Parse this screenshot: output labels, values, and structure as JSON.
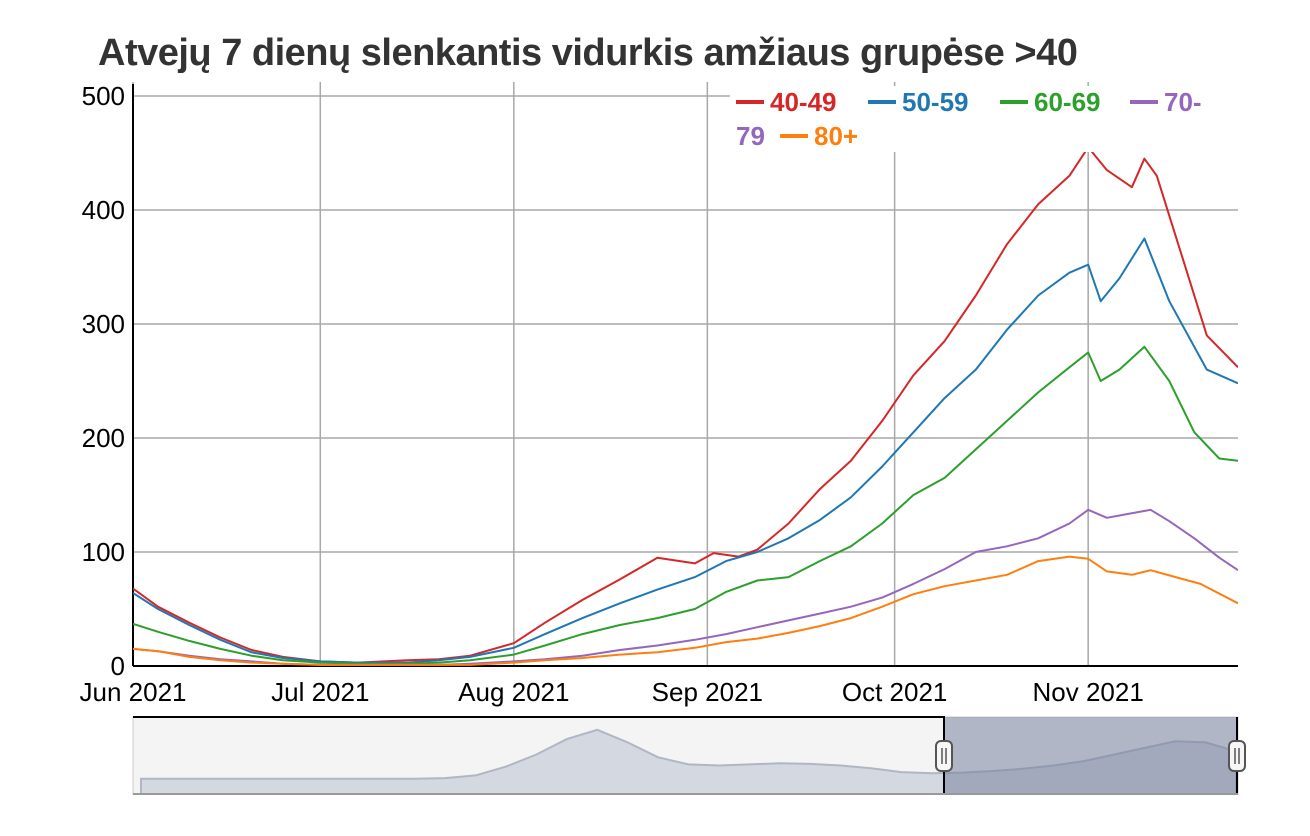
{
  "chart_data": {
    "type": "line",
    "title": "Atvejų 7 dienų slenkantis vidurkis amžiaus grupėse >40",
    "xlabel": "",
    "ylabel": "",
    "x_start": "2021-06-01",
    "x_end": "2021-11-25",
    "x_ticks": [
      "Jun 2021",
      "Jul 2021",
      "Aug 2021",
      "Sep 2021",
      "Oct 2021",
      "Nov 2021"
    ],
    "x_tick_dates": [
      "2021-06-01",
      "2021-07-01",
      "2021-08-01",
      "2021-09-01",
      "2021-10-01",
      "2021-11-01"
    ],
    "y_ticks": [
      "0",
      "100",
      "200",
      "300",
      "400",
      "500"
    ],
    "ylim": [
      0,
      500
    ],
    "grid": true,
    "legend_position": "top-right",
    "series": [
      {
        "name": "40-49",
        "color": "#d62728",
        "points": [
          [
            "2021-06-01",
            68
          ],
          [
            "2021-06-05",
            52
          ],
          [
            "2021-06-10",
            38
          ],
          [
            "2021-06-15",
            25
          ],
          [
            "2021-06-20",
            14
          ],
          [
            "2021-06-25",
            8
          ],
          [
            "2021-07-01",
            4
          ],
          [
            "2021-07-07",
            3
          ],
          [
            "2021-07-15",
            5
          ],
          [
            "2021-07-20",
            6
          ],
          [
            "2021-07-25",
            9
          ],
          [
            "2021-08-01",
            20
          ],
          [
            "2021-08-06",
            38
          ],
          [
            "2021-08-12",
            58
          ],
          [
            "2021-08-18",
            76
          ],
          [
            "2021-08-24",
            95
          ],
          [
            "2021-08-30",
            90
          ],
          [
            "2021-09-02",
            99
          ],
          [
            "2021-09-06",
            96
          ],
          [
            "2021-09-09",
            102
          ],
          [
            "2021-09-14",
            125
          ],
          [
            "2021-09-19",
            155
          ],
          [
            "2021-09-24",
            180
          ],
          [
            "2021-09-29",
            215
          ],
          [
            "2021-10-04",
            255
          ],
          [
            "2021-10-09",
            285
          ],
          [
            "2021-10-14",
            325
          ],
          [
            "2021-10-19",
            370
          ],
          [
            "2021-10-24",
            405
          ],
          [
            "2021-10-29",
            430
          ],
          [
            "2021-11-01",
            455
          ],
          [
            "2021-11-04",
            435
          ],
          [
            "2021-11-08",
            420
          ],
          [
            "2021-11-10",
            445
          ],
          [
            "2021-11-12",
            430
          ],
          [
            "2021-11-16",
            360
          ],
          [
            "2021-11-20",
            290
          ],
          [
            "2021-11-25",
            262
          ]
        ]
      },
      {
        "name": "50-59",
        "color": "#1f77b4",
        "points": [
          [
            "2021-06-01",
            64
          ],
          [
            "2021-06-05",
            50
          ],
          [
            "2021-06-10",
            36
          ],
          [
            "2021-06-15",
            23
          ],
          [
            "2021-06-20",
            12
          ],
          [
            "2021-06-25",
            7
          ],
          [
            "2021-07-01",
            4
          ],
          [
            "2021-07-07",
            3
          ],
          [
            "2021-07-15",
            3
          ],
          [
            "2021-07-20",
            5
          ],
          [
            "2021-07-25",
            8
          ],
          [
            "2021-08-01",
            16
          ],
          [
            "2021-08-06",
            28
          ],
          [
            "2021-08-12",
            42
          ],
          [
            "2021-08-18",
            55
          ],
          [
            "2021-08-24",
            67
          ],
          [
            "2021-08-30",
            78
          ],
          [
            "2021-09-04",
            92
          ],
          [
            "2021-09-09",
            100
          ],
          [
            "2021-09-14",
            112
          ],
          [
            "2021-09-19",
            128
          ],
          [
            "2021-09-24",
            148
          ],
          [
            "2021-09-29",
            175
          ],
          [
            "2021-10-04",
            205
          ],
          [
            "2021-10-09",
            235
          ],
          [
            "2021-10-14",
            260
          ],
          [
            "2021-10-19",
            295
          ],
          [
            "2021-10-24",
            325
          ],
          [
            "2021-10-29",
            345
          ],
          [
            "2021-11-01",
            352
          ],
          [
            "2021-11-03",
            320
          ],
          [
            "2021-11-06",
            340
          ],
          [
            "2021-11-10",
            375
          ],
          [
            "2021-11-14",
            320
          ],
          [
            "2021-11-20",
            260
          ],
          [
            "2021-11-25",
            248
          ]
        ]
      },
      {
        "name": "60-69",
        "color": "#2ca02c",
        "points": [
          [
            "2021-06-01",
            37
          ],
          [
            "2021-06-05",
            30
          ],
          [
            "2021-06-10",
            22
          ],
          [
            "2021-06-15",
            15
          ],
          [
            "2021-06-20",
            9
          ],
          [
            "2021-06-25",
            5
          ],
          [
            "2021-07-01",
            3
          ],
          [
            "2021-07-07",
            2
          ],
          [
            "2021-07-15",
            2
          ],
          [
            "2021-07-20",
            3
          ],
          [
            "2021-07-25",
            5
          ],
          [
            "2021-08-01",
            10
          ],
          [
            "2021-08-06",
            18
          ],
          [
            "2021-08-12",
            28
          ],
          [
            "2021-08-18",
            36
          ],
          [
            "2021-08-24",
            42
          ],
          [
            "2021-08-30",
            50
          ],
          [
            "2021-09-04",
            65
          ],
          [
            "2021-09-09",
            75
          ],
          [
            "2021-09-14",
            78
          ],
          [
            "2021-09-19",
            92
          ],
          [
            "2021-09-24",
            105
          ],
          [
            "2021-09-29",
            125
          ],
          [
            "2021-10-04",
            150
          ],
          [
            "2021-10-09",
            165
          ],
          [
            "2021-10-14",
            190
          ],
          [
            "2021-10-19",
            215
          ],
          [
            "2021-10-24",
            240
          ],
          [
            "2021-10-29",
            262
          ],
          [
            "2021-11-01",
            275
          ],
          [
            "2021-11-03",
            250
          ],
          [
            "2021-11-06",
            260
          ],
          [
            "2021-11-10",
            280
          ],
          [
            "2021-11-14",
            250
          ],
          [
            "2021-11-18",
            205
          ],
          [
            "2021-11-22",
            182
          ],
          [
            "2021-11-25",
            180
          ]
        ]
      },
      {
        "name": "70-79",
        "color": "#9467bd",
        "points": [
          [
            "2021-06-01",
            15
          ],
          [
            "2021-06-05",
            13
          ],
          [
            "2021-06-10",
            9
          ],
          [
            "2021-06-15",
            6
          ],
          [
            "2021-06-20",
            4
          ],
          [
            "2021-06-25",
            2
          ],
          [
            "2021-07-01",
            1
          ],
          [
            "2021-07-10",
            1
          ],
          [
            "2021-07-20",
            1
          ],
          [
            "2021-07-25",
            2
          ],
          [
            "2021-08-01",
            4
          ],
          [
            "2021-08-06",
            6
          ],
          [
            "2021-08-12",
            9
          ],
          [
            "2021-08-18",
            14
          ],
          [
            "2021-08-24",
            18
          ],
          [
            "2021-08-30",
            23
          ],
          [
            "2021-09-04",
            28
          ],
          [
            "2021-09-09",
            34
          ],
          [
            "2021-09-14",
            40
          ],
          [
            "2021-09-19",
            46
          ],
          [
            "2021-09-24",
            52
          ],
          [
            "2021-09-29",
            60
          ],
          [
            "2021-10-04",
            72
          ],
          [
            "2021-10-09",
            85
          ],
          [
            "2021-10-14",
            100
          ],
          [
            "2021-10-19",
            105
          ],
          [
            "2021-10-24",
            112
          ],
          [
            "2021-10-29",
            125
          ],
          [
            "2021-11-01",
            137
          ],
          [
            "2021-11-04",
            130
          ],
          [
            "2021-11-07",
            133
          ],
          [
            "2021-11-11",
            137
          ],
          [
            "2021-11-14",
            127
          ],
          [
            "2021-11-18",
            112
          ],
          [
            "2021-11-22",
            95
          ],
          [
            "2021-11-25",
            84
          ]
        ]
      },
      {
        "name": "80+",
        "color": "#ff7f0e",
        "points": [
          [
            "2021-06-01",
            15
          ],
          [
            "2021-06-05",
            13
          ],
          [
            "2021-06-10",
            8
          ],
          [
            "2021-06-15",
            5
          ],
          [
            "2021-06-20",
            3
          ],
          [
            "2021-06-25",
            2
          ],
          [
            "2021-07-01",
            1
          ],
          [
            "2021-07-10",
            1
          ],
          [
            "2021-07-20",
            1
          ],
          [
            "2021-07-25",
            1
          ],
          [
            "2021-08-01",
            3
          ],
          [
            "2021-08-06",
            5
          ],
          [
            "2021-08-12",
            7
          ],
          [
            "2021-08-18",
            10
          ],
          [
            "2021-08-24",
            12
          ],
          [
            "2021-08-30",
            16
          ],
          [
            "2021-09-04",
            21
          ],
          [
            "2021-09-09",
            24
          ],
          [
            "2021-09-14",
            29
          ],
          [
            "2021-09-19",
            35
          ],
          [
            "2021-09-24",
            42
          ],
          [
            "2021-09-29",
            52
          ],
          [
            "2021-10-04",
            63
          ],
          [
            "2021-10-09",
            70
          ],
          [
            "2021-10-14",
            75
          ],
          [
            "2021-10-19",
            80
          ],
          [
            "2021-10-24",
            92
          ],
          [
            "2021-10-29",
            96
          ],
          [
            "2021-11-01",
            94
          ],
          [
            "2021-11-04",
            83
          ],
          [
            "2021-11-08",
            80
          ],
          [
            "2021-11-11",
            84
          ],
          [
            "2021-11-15",
            78
          ],
          [
            "2021-11-19",
            72
          ],
          [
            "2021-11-25",
            55
          ]
        ]
      }
    ]
  },
  "navigator": {
    "selection_start": "2021-06-01",
    "selection_end": "2021-11-25",
    "shape": [
      0.06,
      0.06,
      0.06,
      0.06,
      0.06,
      0.06,
      0.06,
      0.06,
      0.06,
      0.06,
      0.07,
      0.12,
      0.28,
      0.5,
      0.78,
      0.95,
      0.72,
      0.45,
      0.32,
      0.3,
      0.32,
      0.34,
      0.33,
      0.3,
      0.25,
      0.18,
      0.16,
      0.17,
      0.2,
      0.24,
      0.3,
      0.38,
      0.5,
      0.62,
      0.74,
      0.72,
      0.56
    ]
  }
}
